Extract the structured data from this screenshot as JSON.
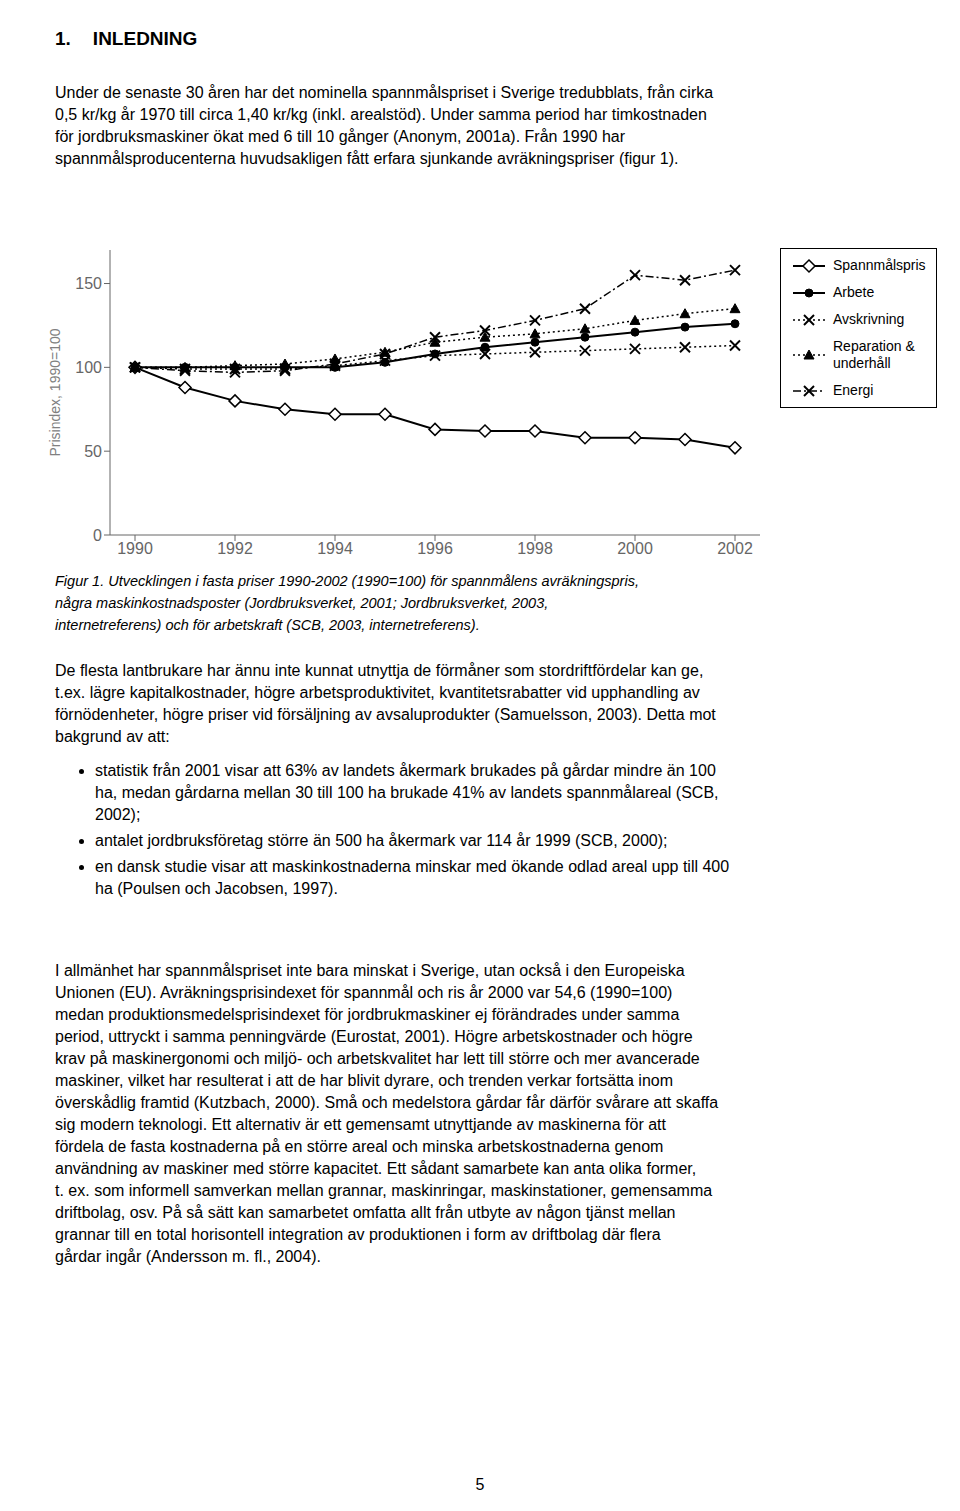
{
  "chart_data": {
    "type": "line",
    "x": [
      1990,
      1991,
      1992,
      1993,
      1994,
      1995,
      1996,
      1997,
      1998,
      1999,
      2000,
      2001,
      2002
    ],
    "series": [
      {
        "name": "Spannmålspris",
        "color": "#000000",
        "marker": "diamond",
        "line_style": "solid",
        "values": [
          100,
          88,
          80,
          75,
          72,
          72,
          63,
          62,
          62,
          58,
          58,
          57,
          52
        ]
      },
      {
        "name": "Arbete",
        "color": "#000000",
        "marker": "circle",
        "line_style": "solid",
        "values": [
          100,
          100,
          100,
          100,
          100,
          103,
          108,
          112,
          115,
          118,
          121,
          124,
          126
        ]
      },
      {
        "name": "Avskrivning",
        "color": "#000000",
        "marker": "x",
        "line_style": "dotted",
        "values": [
          100,
          99,
          99,
          99,
          101,
          104,
          107,
          108,
          109,
          110,
          111,
          112,
          113
        ]
      },
      {
        "name": "Reparation &\nunderhåll",
        "color": "#000000",
        "marker": "triangle",
        "line_style": "dotted",
        "values": [
          100,
          100,
          101,
          102,
          105,
          109,
          115,
          118,
          120,
          123,
          128,
          132,
          135
        ]
      },
      {
        "name": "Energi",
        "color": "#000000",
        "marker": "x",
        "line_style": "dashdot",
        "values": [
          100,
          98,
          97,
          98,
          102,
          108,
          118,
          122,
          128,
          135,
          155,
          152,
          158
        ]
      }
    ],
    "ylabel": "Prisindex, 1990=100",
    "xlim": [
      1989.5,
      2002.5
    ],
    "ylim": [
      0,
      170
    ],
    "xticks": [
      1990,
      1992,
      1994,
      1996,
      1998,
      2000,
      2002
    ],
    "yticks": [
      0,
      50,
      100,
      150
    ],
    "grid": false,
    "legend": "right",
    "annotations": [
      "1. INLEDNING",
      "Under de senaste 30 åren har det nominella spannmålspriset i Sverige tredubblats, från cirka\n0,5 kr/kg år 1970 till circa 1,40 kr/kg (inkl. arealstöd). Under samma period har timkostnaden\nför jordbruksmaskiner ökat med 6 till 10 gånger (Anonym, 2001a). Från 1990 har\nspannmålsproducenterna huvudsakligen fått erfara sjunkande avräkningspriser (figur 1).",
      "Figur 1. Utvecklingen i fasta priser 1990-2002 (1990=100) för spannmålens avräkningspris,\nnågra maskinkostnadsposter (Jordbruksverket, 2001; Jordbruksverket, 2003,\ninternetreferens) och för arbetskraft (SCB, 2003, internetreferens).",
      "De flesta lantbrukare har ännu inte kunnat utnyttja de förmåner som stordriftfördelar kan ge,\nt.ex. lägre kapitalkostnader, högre arbetsproduktivitet, kvantitetsrabatter vid upphandling av\nförnödenheter, högre priser vid försäljning av avsaluprodukter (Samuelsson, 2003). Detta mot\nbakgrund av att:",
      "statistik från 2001 visar att 63% av landets åkermark brukades på gårdar mindre än 100\nha, medan gårdarna mellan 30 till 100 ha brukade 41% av landets spannmålareal (SCB,\n2002);",
      "antalet jordbruksföretag större än 500 ha åkermark var 114 år 1999 (SCB, 2000);",
      "en dansk studie visar att maskinkostnaderna minskar med ökande odlad areal upp till 400\nha (Poulsen och Jacobsen, 1997).",
      "I allmänhet har spannmålspriset inte bara minskat i Sverige, utan också i den Europeiska\nUnionen (EU). Avräkningsprisindexet för spannmål och ris år 2000 var 54,6 (1990=100)\nmedan produktionsmedelsprisindexet för jordbrukmaskiner ej förändrades under samma\nperiod, uttryckt i samma penningvärde (Eurostat, 2001). Högre arbetskostnader och högre\nkrav på maskinergonomi och miljö- och arbetskvalitet har lett till större och mer avancerade\nmaskiner, vilket har resulterat i att de har blivit dyrare, och trenden verkar fortsätta inom\növerskådlig framtid (Kutzbach, 2000). Små och medelstora gårdar får därför svårare att skaffa\nsig modern teknologi. Ett alternativ är ett gemensamt utnyttjande av maskinerna för att\nfördela de fasta kostnaderna på en större areal och minska arbetskostnaderna genom\nanvändning av maskiner med större kapacitet. Ett sådant samarbete kan anta olika former,\nt. ex. som informell samverkan mellan grannar, maskinringar, maskinstationer, gemensamma\ndriftbolag, osv. På så sätt kan samarbetet omfatta allt från utbyte av någon tjänst mellan\ngrannar till en total horisontell integration av produktionen i form av driftbolag där flera\ngårdar ingår (Andersson m. fl., 2004).",
      "5"
    ]
  }
}
